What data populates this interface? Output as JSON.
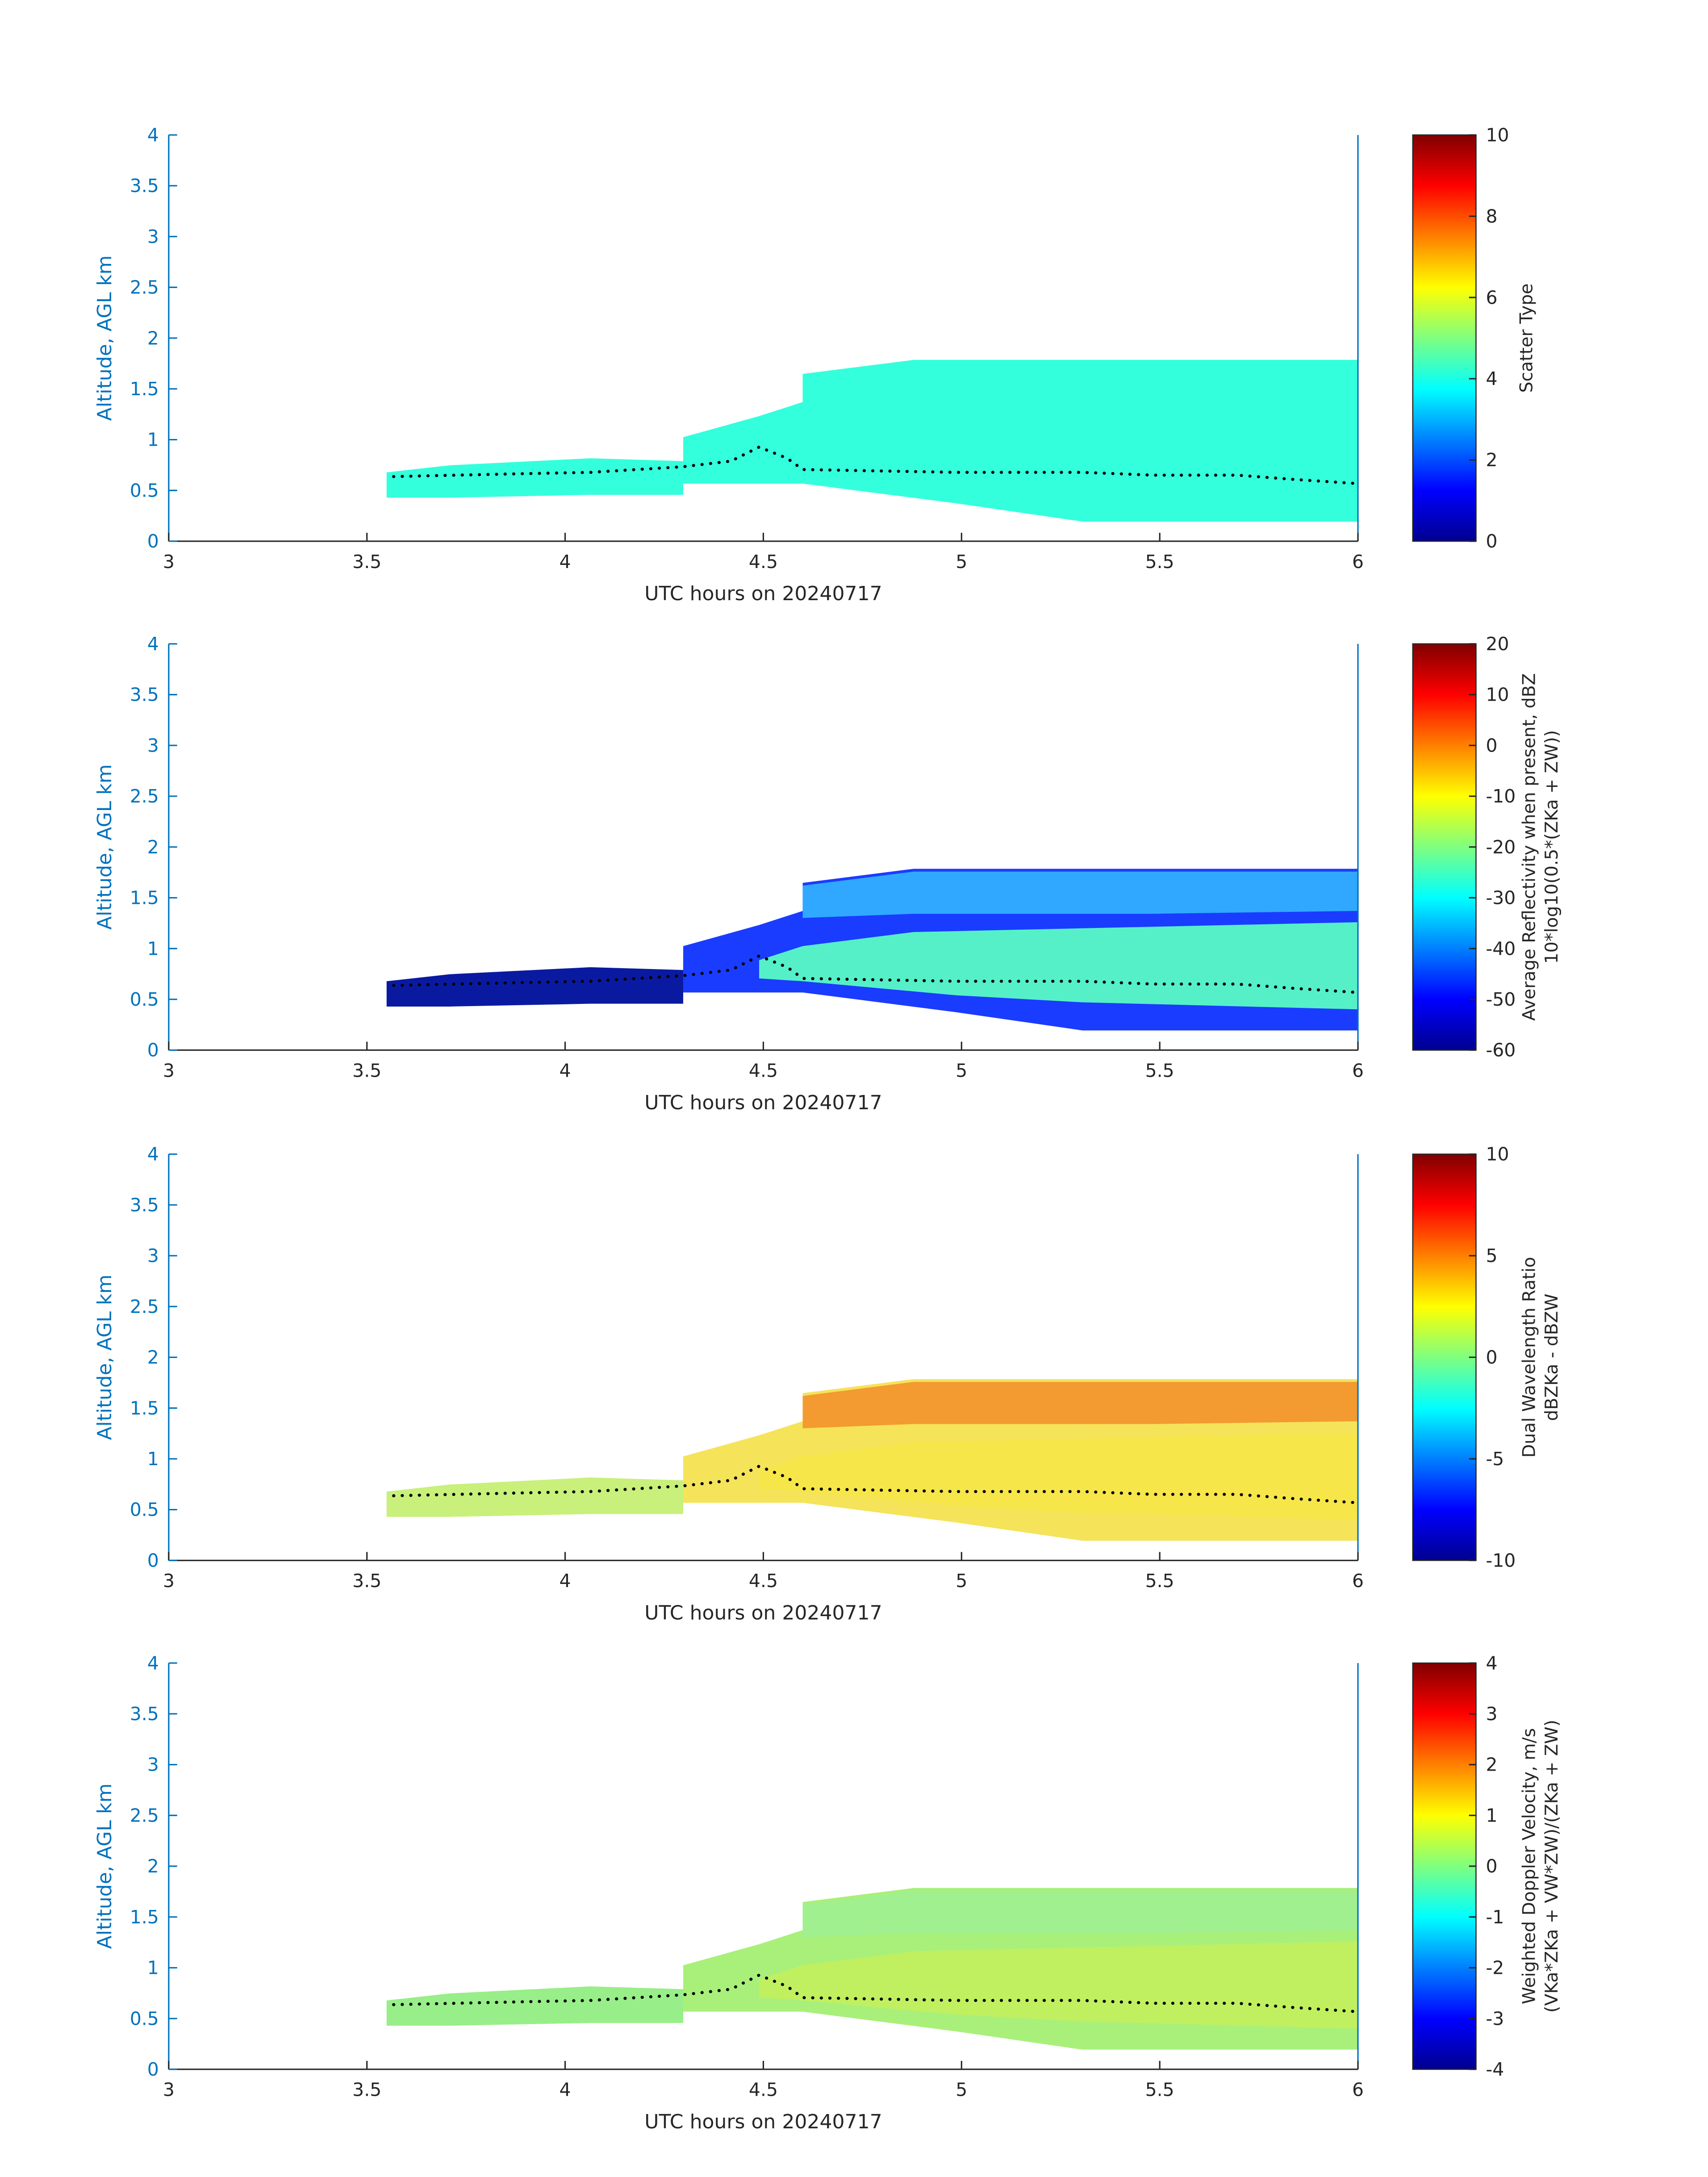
{
  "chart_data": [
    {
      "type": "heatmap",
      "xlabel": "UTC hours on 20240717",
      "ylabel": "Altitude, AGL km",
      "xlim": [
        3,
        6
      ],
      "xticks": [
        3,
        3.5,
        4,
        4.5,
        5,
        5.5,
        6
      ],
      "ylim": [
        0,
        4
      ],
      "yticks": [
        0,
        0.5,
        1,
        1.5,
        2,
        2.5,
        3,
        3.5,
        4
      ],
      "colorbar_label": [
        "Scatter Type"
      ],
      "clim": [
        0,
        10
      ],
      "cticks": [
        0,
        2,
        4,
        6,
        8,
        10
      ]
    },
    {
      "type": "heatmap",
      "xlabel": "UTC hours on 20240717",
      "ylabel": "Altitude, AGL km",
      "xlim": [
        3,
        6
      ],
      "xticks": [
        3,
        3.5,
        4,
        4.5,
        5,
        5.5,
        6
      ],
      "ylim": [
        0,
        4
      ],
      "yticks": [
        0,
        0.5,
        1,
        1.5,
        2,
        2.5,
        3,
        3.5,
        4
      ],
      "colorbar_label": [
        "Average Reflectivity when present, dBZ",
        "10*log10(0.5*(ZKa + ZW))"
      ],
      "clim": [
        -60,
        20
      ],
      "cticks": [
        -60,
        -50,
        -40,
        -30,
        -20,
        -10,
        0,
        10,
        20
      ]
    },
    {
      "type": "heatmap",
      "xlabel": "UTC hours on 20240717",
      "ylabel": "Altitude, AGL km",
      "xlim": [
        3,
        6
      ],
      "xticks": [
        3,
        3.5,
        4,
        4.5,
        5,
        5.5,
        6
      ],
      "ylim": [
        0,
        4
      ],
      "yticks": [
        0,
        0.5,
        1,
        1.5,
        2,
        2.5,
        3,
        3.5,
        4
      ],
      "colorbar_label": [
        "Dual Wavelength Ratio",
        "dBZKa - dBZW"
      ],
      "clim": [
        -10,
        10
      ],
      "cticks": [
        -10,
        -5,
        0,
        5,
        10
      ]
    },
    {
      "type": "heatmap",
      "xlabel": "UTC hours on 20240717",
      "ylabel": "Altitude, AGL km",
      "xlim": [
        3,
        6
      ],
      "xticks": [
        3,
        3.5,
        4,
        4.5,
        5,
        5.5,
        6
      ],
      "ylim": [
        0,
        4
      ],
      "yticks": [
        0,
        0.5,
        1,
        1.5,
        2,
        2.5,
        3,
        3.5,
        4
      ],
      "colorbar_label": [
        "Weighted Doppler Velocity, m/s",
        "(VKa*ZKa + VW*ZW)/(ZKa + ZW)"
      ],
      "clim": [
        -4,
        4
      ],
      "cticks": [
        -4,
        -3,
        -2,
        -1,
        0,
        1,
        2,
        3,
        4
      ]
    }
  ]
}
